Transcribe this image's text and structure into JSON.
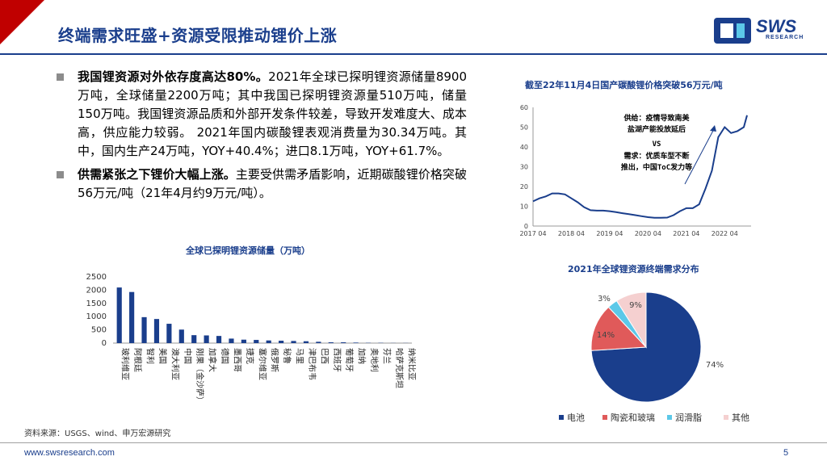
{
  "header": {
    "title": "终端需求旺盛+资源受限推动锂价上涨",
    "logo_text": "SWS",
    "logo_sub": "RESEARCH"
  },
  "bullets": [
    {
      "bold": "我国锂资源对外依存度高达80%。",
      "text": "2021年全球已探明锂资源储量8900万吨，全球储量2200万吨；其中我国已探明锂资源量510万吨，储量150万吨。我国锂资源品质和外部开发条件较差，导致开发难度大、成本高，供应能力较弱。 2021年国内碳酸锂表观消费量为30.34万吨。其中，国内生产24万吨，YOY+40.4%；进口8.1万吨，YOY+61.7%。"
    },
    {
      "bold": "供需紧张之下锂价大幅上涨。",
      "text": "主要受供需矛盾影响，近期碳酸锂价格突破56万元/吨（21年4月约9万元/吨）。"
    }
  ],
  "annotation": {
    "supply": "供给：疫情导致南美\n盐湖产能投放延后",
    "vs": "VS",
    "demand": "需求：优质车型不断\n推出，中国ToC发力等"
  },
  "chart_data": [
    {
      "type": "line",
      "title": "截至22年11月4日国产碳酸锂价格突破56万元/吨",
      "x_ticks": [
        "2017 04",
        "2018 04",
        "2019 04",
        "2020 04",
        "2021 04",
        "2022 04"
      ],
      "y_ticks": [
        0,
        10,
        20,
        30,
        40,
        50,
        60
      ],
      "ylim": [
        0,
        60
      ],
      "x": [
        "2017-04",
        "2017-06",
        "2017-08",
        "2017-10",
        "2017-12",
        "2018-02",
        "2018-04",
        "2018-06",
        "2018-08",
        "2018-10",
        "2018-12",
        "2019-02",
        "2019-04",
        "2019-06",
        "2019-08",
        "2019-10",
        "2019-12",
        "2020-02",
        "2020-04",
        "2020-06",
        "2020-08",
        "2020-10",
        "2020-12",
        "2021-02",
        "2021-04",
        "2021-06",
        "2021-08",
        "2021-10",
        "2021-12",
        "2022-02",
        "2022-04",
        "2022-06",
        "2022-08",
        "2022-10",
        "2022-11"
      ],
      "values": [
        12.5,
        14,
        15,
        16.5,
        16.5,
        16,
        14,
        12,
        9.5,
        8,
        7.8,
        7.8,
        7.5,
        7,
        6.5,
        6,
        5.5,
        5,
        4.5,
        4.2,
        4.2,
        4.3,
        5.5,
        7.5,
        9,
        9,
        11,
        19,
        28,
        45,
        50,
        47,
        48,
        50,
        56
      ]
    },
    {
      "type": "bar",
      "title": "全球已探明锂资源储量（万吨）",
      "categories": [
        "玻利维亚",
        "阿根廷",
        "智利",
        "美国",
        "澳大利亚",
        "中国",
        "刚果（金沙萨）",
        "加拿大",
        "德国",
        "墨西哥",
        "捷克",
        "塞尔维亚",
        "俄罗斯",
        "秘鲁",
        "马里",
        "津巴布韦",
        "巴西",
        "西班牙",
        "葡萄牙",
        "加纳",
        "奥地利",
        "芬兰",
        "哈萨克斯坦",
        "纳米比亚"
      ],
      "values": [
        2100,
        1930,
        980,
        910,
        730,
        510,
        300,
        290,
        270,
        170,
        130,
        120,
        100,
        90,
        80,
        70,
        50,
        30,
        30,
        20,
        10,
        10,
        5,
        5
      ],
      "y_ticks": [
        0,
        500,
        1000,
        1500,
        2000,
        2500
      ],
      "ylim": [
        0,
        2500
      ],
      "color": "#1a3e8c"
    },
    {
      "type": "pie",
      "title": "2021年全球锂资源终端需求分布",
      "labels": [
        "电池",
        "陶瓷和玻璃",
        "润滑脂",
        "其他"
      ],
      "values": [
        74,
        14,
        3,
        9
      ],
      "value_labels": [
        "74%",
        "14%",
        "3%",
        "9%"
      ],
      "colors": [
        "#1a3e8c",
        "#e05a5a",
        "#5cc8e8",
        "#f5d0d0"
      ]
    }
  ],
  "footer": {
    "source": "资料来源：USGS、wind、申万宏源研究",
    "url": "www.swsresearch.com",
    "page": "5"
  }
}
